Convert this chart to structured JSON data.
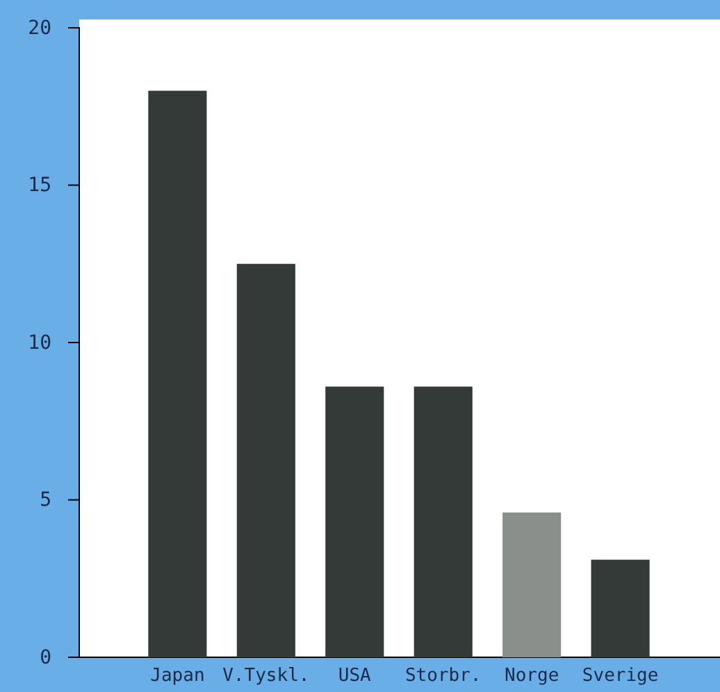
{
  "chart_data": {
    "type": "bar",
    "categories": [
      "Japan",
      "V.Tyskl.",
      "USA",
      "Storbr.",
      "Norge",
      "Sverige"
    ],
    "values": [
      18,
      12.5,
      8.6,
      8.6,
      4.6,
      3.1
    ],
    "colors": [
      "#343a37",
      "#343a37",
      "#343a37",
      "#343a37",
      "#8a8f8c",
      "#343a37"
    ],
    "ylim": [
      0,
      20
    ],
    "yticks": [
      0,
      5,
      10,
      15,
      20
    ],
    "grid": false
  }
}
